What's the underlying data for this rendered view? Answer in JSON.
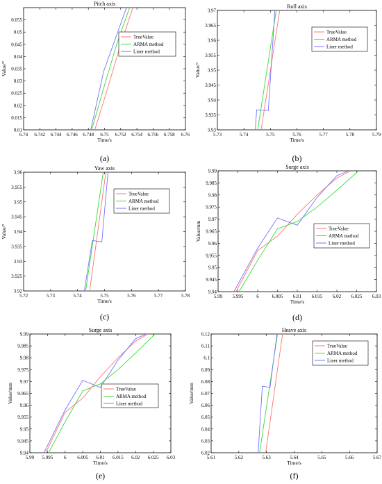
{
  "legend_labels": [
    "TrueValue",
    "ARMA method",
    "Liner method"
  ],
  "colors": {
    "true": "#ff7373",
    "arma": "#33dd33",
    "liner": "#7373ff",
    "axis": "#000000"
  },
  "chart_data": [
    {
      "panel": "(a)",
      "type": "line",
      "title": "Pitch axis",
      "xlabel": "Time/s",
      "ylabel": "Value/°",
      "xlim": [
        6.74,
        6.76
      ],
      "ylim": [
        0.01,
        0.06
      ],
      "xticks": [
        "6.74",
        "6.742",
        "6.744",
        "6.746",
        "6.748",
        "6.75",
        "6.752",
        "6.754",
        "6.756",
        "6.758",
        "6.76"
      ],
      "yticks": [
        "0.01",
        "0.015",
        "0.02",
        "0.025",
        "0.03",
        "0.035",
        "0.04",
        "0.045",
        "0.05",
        "0.055"
      ],
      "legend_position": "top-right",
      "grid": false,
      "series": [
        {
          "name": "TrueValue",
          "color": "#ff7373",
          "x": [
            6.7488,
            6.7502,
            6.752,
            6.7535
          ],
          "y": [
            0.01,
            0.025,
            0.045,
            0.06
          ]
        },
        {
          "name": "ARMA method",
          "color": "#33dd33",
          "x": [
            6.7484,
            6.7498,
            6.7515,
            6.7531
          ],
          "y": [
            0.01,
            0.026,
            0.045,
            0.06
          ]
        },
        {
          "name": "Liner method",
          "color": "#7373ff",
          "x": [
            6.7483,
            6.7499,
            6.7512,
            6.7527
          ],
          "y": [
            0.01,
            0.034,
            0.046,
            0.06
          ]
        }
      ]
    },
    {
      "panel": "(b)",
      "type": "line",
      "title": "Roll axis",
      "xlabel": "Time/s",
      "ylabel": "Value/°",
      "xlim": [
        5.73,
        5.79
      ],
      "ylim": [
        3.93,
        3.97
      ],
      "xticks": [
        "5.73",
        "5.74",
        "5.75",
        "5.76",
        "5.77",
        "5.78",
        "5.79"
      ],
      "yticks": [
        "3.93",
        "3.935",
        "3.94",
        "3.945",
        "3.95",
        "3.955",
        "3.96",
        "3.965",
        "3.97"
      ],
      "legend_position": "top-right",
      "grid": false,
      "series": [
        {
          "name": "TrueValue",
          "color": "#ff7373",
          "x": [
            5.7465,
            5.7535
          ],
          "y": [
            3.93,
            3.97
          ]
        },
        {
          "name": "ARMA method",
          "color": "#33dd33",
          "x": [
            5.7452,
            5.7522
          ],
          "y": [
            3.93,
            3.97
          ]
        },
        {
          "name": "Liner method",
          "color": "#7373ff",
          "x": [
            5.7443,
            5.7448,
            5.7492,
            5.7517
          ],
          "y": [
            3.93,
            3.9367,
            3.9365,
            3.97
          ]
        }
      ]
    },
    {
      "panel": "(c)",
      "type": "line",
      "title": "Yaw axis",
      "xlabel": "Time/s",
      "ylabel": "Value/°",
      "xlim": [
        5.72,
        5.78
      ],
      "ylim": [
        3.92,
        3.96
      ],
      "xticks": [
        "5.72",
        "5.73",
        "5.74",
        "5.75",
        "5.76",
        "5.77",
        "5.78"
      ],
      "yticks": [
        "3.92",
        "3.925",
        "3.93",
        "3.935",
        "3.94",
        "3.945",
        "3.95",
        "3.955",
        "3.96"
      ],
      "legend_position": "top-right",
      "grid": false,
      "series": [
        {
          "name": "TrueValue",
          "color": "#ff7373",
          "x": [
            5.7445,
            5.7505
          ],
          "y": [
            3.92,
            3.96
          ]
        },
        {
          "name": "ARMA method",
          "color": "#33dd33",
          "x": [
            5.743,
            5.7495
          ],
          "y": [
            3.92,
            3.96
          ]
        },
        {
          "name": "Liner method",
          "color": "#7373ff",
          "x": [
            5.7425,
            5.7455,
            5.749,
            5.7513
          ],
          "y": [
            3.92,
            3.937,
            3.9365,
            3.96
          ]
        }
      ]
    },
    {
      "panel": "(d)",
      "type": "line",
      "title": "Surge axis",
      "xlabel": "Time/s",
      "ylabel": "Value/mm",
      "xlim": [
        5.99,
        6.03
      ],
      "ylim": [
        9.94,
        9.99
      ],
      "xticks": [
        "5.99",
        "5.995",
        "6",
        "6.005",
        "6.01",
        "6.015",
        "6.02",
        "6.025",
        "6.03"
      ],
      "yticks": [
        "9.94",
        "9.945",
        "9.95",
        "9.955",
        "9.96",
        "9.965",
        "9.97",
        "9.975",
        "9.98",
        "9.985",
        "9.99"
      ],
      "legend_position": "bottom-right",
      "grid": false,
      "series": [
        {
          "name": "TrueValue",
          "color": "#ff7373",
          "x": [
            5.9945,
            6.0,
            6.005,
            6.01,
            6.015,
            6.02,
            6.0235
          ],
          "y": [
            9.94,
            9.957,
            9.963,
            9.972,
            9.98,
            9.987,
            9.99
          ]
        },
        {
          "name": "ARMA method",
          "color": "#33dd33",
          "x": [
            5.9953,
            6.0,
            6.005,
            6.01,
            6.015,
            6.02,
            6.0255
          ],
          "y": [
            9.94,
            9.953,
            9.966,
            9.969,
            9.975,
            9.982,
            9.99
          ]
        },
        {
          "name": "Liner method",
          "color": "#7373ff",
          "x": [
            5.994,
            6.0,
            6.005,
            6.01,
            6.015,
            6.02,
            6.023
          ],
          "y": [
            9.94,
            9.958,
            9.9705,
            9.9675,
            9.979,
            9.988,
            9.99
          ]
        }
      ]
    },
    {
      "panel": "(e)",
      "type": "line",
      "title": "Surge axis",
      "xlabel": "Time/s",
      "ylabel": "Value/mm",
      "xlim": [
        5.99,
        6.03
      ],
      "ylim": [
        9.94,
        9.99
      ],
      "xticks": [
        "5.99",
        "5.995",
        "6",
        "6.005",
        "6.01",
        "6.015",
        "6.02",
        "6.025",
        "6.03"
      ],
      "yticks": [
        "9.94",
        "9.945",
        "9.95",
        "9.955",
        "9.96",
        "9.965",
        "9.97",
        "9.975",
        "9.98",
        "9.985",
        "9.99"
      ],
      "legend_position": "bottom-right",
      "grid": false,
      "series": [
        {
          "name": "TrueValue",
          "color": "#ff7373",
          "x": [
            5.9945,
            6.0,
            6.005,
            6.01,
            6.015,
            6.02,
            6.0235
          ],
          "y": [
            9.94,
            9.957,
            9.963,
            9.972,
            9.98,
            9.987,
            9.99
          ]
        },
        {
          "name": "ARMA method",
          "color": "#33dd33",
          "x": [
            5.9953,
            6.0,
            6.005,
            6.01,
            6.015,
            6.02,
            6.0255
          ],
          "y": [
            9.94,
            9.953,
            9.966,
            9.969,
            9.975,
            9.982,
            9.99
          ]
        },
        {
          "name": "Liner method",
          "color": "#7373ff",
          "x": [
            5.994,
            6.0,
            6.005,
            6.01,
            6.015,
            6.02,
            6.023
          ],
          "y": [
            9.94,
            9.958,
            9.9705,
            9.9675,
            9.979,
            9.988,
            9.99
          ]
        }
      ]
    },
    {
      "panel": "(f)",
      "type": "line",
      "title": "Heave axis",
      "xlabel": "Time/s",
      "ylabel": "Value/mm",
      "xlim": [
        5.61,
        5.67
      ],
      "ylim": [
        6.02,
        6.12
      ],
      "xticks": [
        "5.61",
        "5.62",
        "5.63",
        "5.64",
        "5.65",
        "5.66",
        "5.67"
      ],
      "yticks": [
        "6.02",
        "6.03",
        "6.04",
        "6.05",
        "6.06",
        "6.07",
        "6.08",
        "6.09",
        "6.1",
        "6.11",
        "6.12"
      ],
      "legend_position": "top-right",
      "grid": false,
      "series": [
        {
          "name": "TrueValue",
          "color": "#ff7373",
          "x": [
            5.6297,
            5.6358
          ],
          "y": [
            6.02,
            6.12
          ]
        },
        {
          "name": "ARMA method",
          "color": "#33dd33",
          "x": [
            5.6275,
            5.634
          ],
          "y": [
            6.02,
            6.12
          ]
        },
        {
          "name": "Liner method",
          "color": "#7373ff",
          "x": [
            5.627,
            5.6285,
            5.6313,
            5.6338
          ],
          "y": [
            6.02,
            6.076,
            6.075,
            6.12
          ]
        }
      ]
    }
  ]
}
